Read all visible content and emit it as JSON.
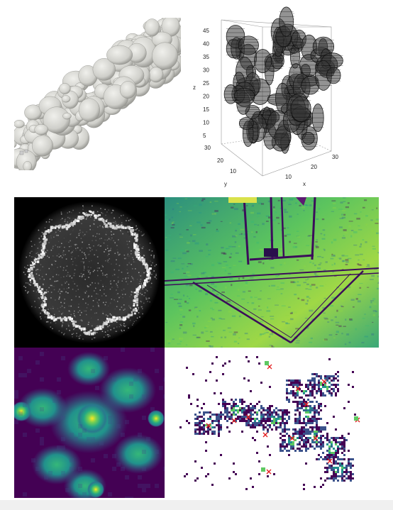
{
  "colors": {
    "surface": "#d9d9d4",
    "surface_shadow": "#9a9a94",
    "viridis_dark": "#440154",
    "viridis_blue": "#31688e",
    "viridis_teal": "#21918c",
    "viridis_green": "#35b779",
    "viridis_yellow": "#fde725",
    "marker_red": "#e31a1c"
  },
  "chart_data": {
    "type": "scatter",
    "title": "",
    "xlabel": "x",
    "ylabel": "y",
    "zlabel": "z",
    "z_ticks": [
      "45",
      "40",
      "35",
      "30",
      "25",
      "20",
      "15",
      "10",
      "5"
    ],
    "y_ticks": [
      "30",
      "20",
      "10"
    ],
    "x_ticks": [
      "10",
      "20",
      "30"
    ]
  }
}
